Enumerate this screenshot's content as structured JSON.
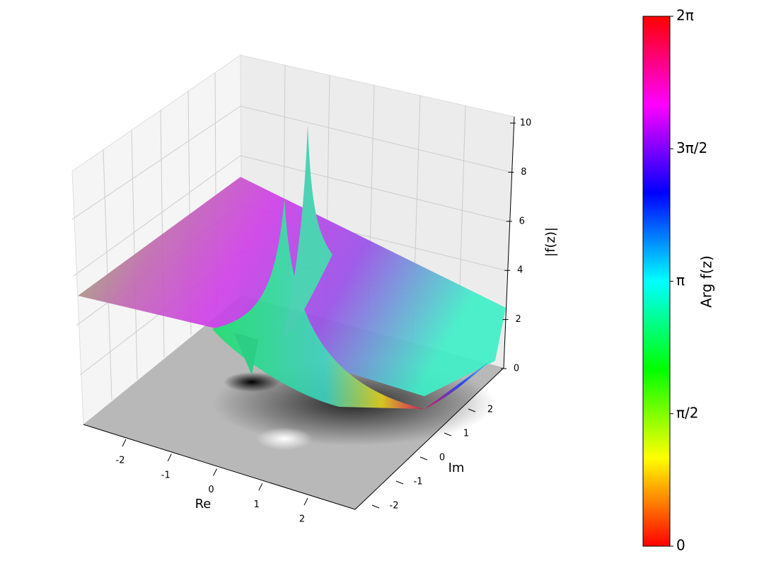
{
  "chart_data": {
    "type": "surface3d",
    "xlabel": "Re",
    "ylabel": "Im",
    "zlabel": "|f(z)|",
    "xlim": [
      -3,
      3
    ],
    "xticks": [
      -2,
      -1,
      0,
      1,
      2
    ],
    "ylim": [
      -3,
      3
    ],
    "yticks": [
      -2,
      -1,
      0,
      1,
      2
    ],
    "zlim": [
      0,
      10
    ],
    "zticks": [
      0,
      2,
      4,
      6,
      8,
      10
    ],
    "colorbar": {
      "label": "Arg f(z)",
      "lim": [
        0,
        6.2832
      ],
      "ticks": [
        0,
        {
          "value": 1.5708,
          "label": "π/2"
        },
        {
          "value": 3.1416,
          "label": "π"
        },
        {
          "value": 4.7124,
          "label": "3π/2"
        },
        {
          "value": 6.2832,
          "label": "2π"
        }
      ]
    }
  }
}
